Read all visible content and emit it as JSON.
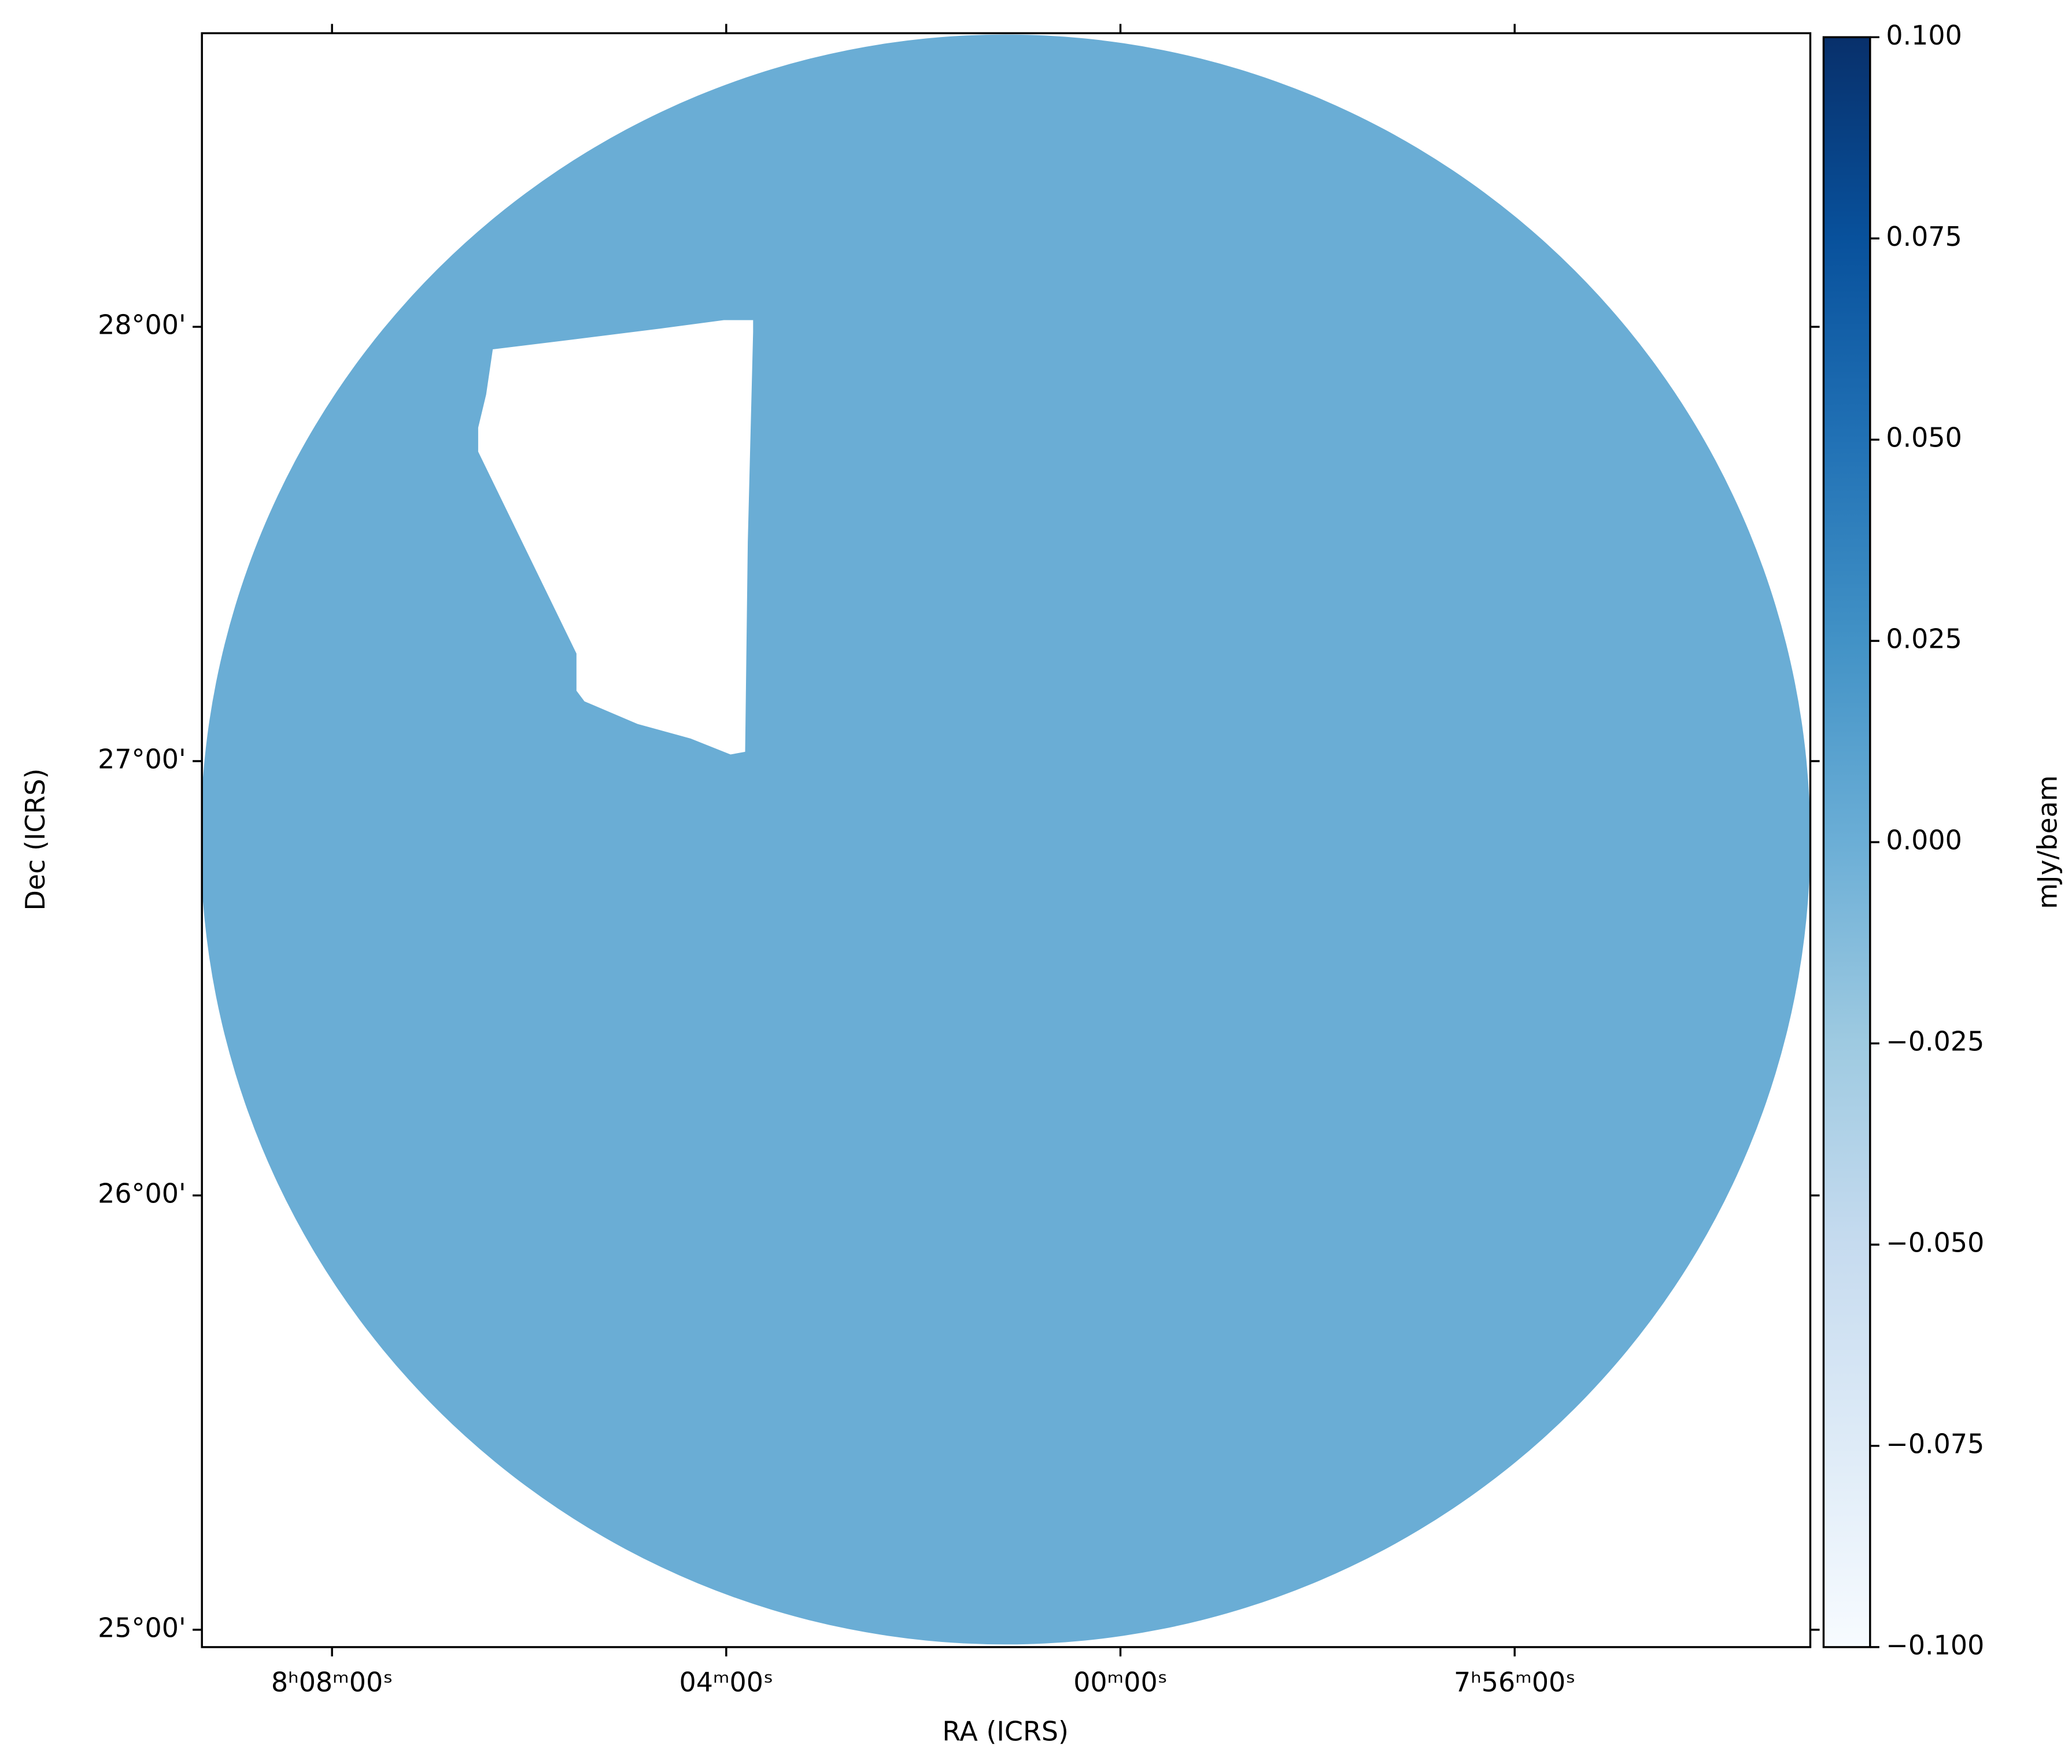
{
  "chart_data": {
    "type": "image",
    "xlabel": "RA (ICRS)",
    "ylabel": "Dec (ICRS)",
    "xlim": [
      122.33,
      118.25
    ],
    "xticks": [
      {
        "value": 122,
        "label": "8ʰ08ᵐ00ˢ"
      },
      {
        "value": 121,
        "label": "04ᵐ00ˢ"
      },
      {
        "value": 120,
        "label": "00ᵐ00ˢ"
      },
      {
        "value": 119,
        "label": "7ʰ56ᵐ00ˢ"
      }
    ],
    "ylim": [
      24.96,
      28.676
    ],
    "yticks": [
      {
        "value": 25,
        "label": "25°00'"
      },
      {
        "value": 26,
        "label": "26°00'"
      },
      {
        "value": 27,
        "label": "27°00'"
      },
      {
        "value": 28,
        "label": "28°00'"
      }
    ],
    "image_color": "#6aadd5",
    "colormap": "Blues",
    "colorbar": {
      "label": "mJy/beam",
      "clim": [
        -0.1,
        0.1
      ],
      "ticks": [
        {
          "value": 0.1,
          "label": "0.100"
        },
        {
          "value": 0.075,
          "label": "0.075"
        },
        {
          "value": 0.05,
          "label": "0.050"
        },
        {
          "value": 0.025,
          "label": "0.025"
        },
        {
          "value": 0,
          "label": "0.000"
        },
        {
          "value": -0.025,
          "label": "−0.025"
        },
        {
          "value": -0.05,
          "label": "−0.050"
        },
        {
          "value": -0.075,
          "label": "−0.075"
        },
        {
          "value": -0.1,
          "label": "−0.100"
        }
      ]
    }
  }
}
